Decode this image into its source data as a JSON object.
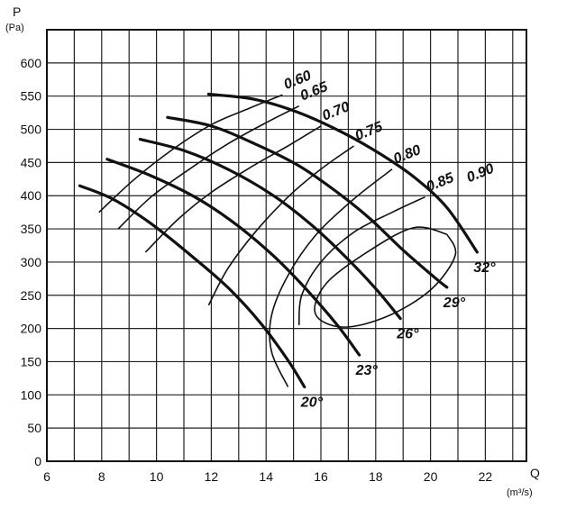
{
  "chart_data": {
    "type": "line",
    "title": "",
    "xlabel": "Q",
    "xlabel_unit": "(m³/s)",
    "ylabel": "P",
    "ylabel_unit": "(Pa)",
    "xlim": [
      6,
      23.5
    ],
    "ylim": [
      0,
      650
    ],
    "x_ticks": [
      "6",
      "8",
      "10",
      "12",
      "14",
      "16",
      "18",
      "20",
      "22"
    ],
    "y_ticks": [
      "0",
      "50",
      "100",
      "150",
      "200",
      "250",
      "300",
      "350",
      "400",
      "450",
      "500",
      "550",
      "600"
    ],
    "grid": true,
    "series": [
      {
        "name": "20°",
        "points": [
          [
            7.2,
            415
          ],
          [
            8.4,
            395
          ],
          [
            9.8,
            358
          ],
          [
            11.2,
            312
          ],
          [
            12.6,
            262
          ],
          [
            13.8,
            208
          ],
          [
            14.8,
            152
          ],
          [
            15.4,
            112
          ]
        ]
      },
      {
        "name": "23°",
        "points": [
          [
            8.2,
            455
          ],
          [
            9.8,
            430
          ],
          [
            11.4,
            398
          ],
          [
            12.8,
            360
          ],
          [
            14.2,
            312
          ],
          [
            15.4,
            262
          ],
          [
            16.6,
            205
          ],
          [
            17.4,
            160
          ]
        ]
      },
      {
        "name": "26°",
        "points": [
          [
            9.4,
            485
          ],
          [
            11.0,
            468
          ],
          [
            12.6,
            440
          ],
          [
            14.2,
            402
          ],
          [
            15.6,
            358
          ],
          [
            16.8,
            312
          ],
          [
            18.0,
            260
          ],
          [
            18.9,
            215
          ]
        ]
      },
      {
        "name": "29°",
        "points": [
          [
            10.4,
            518
          ],
          [
            12.0,
            505
          ],
          [
            13.6,
            478
          ],
          [
            15.2,
            445
          ],
          [
            16.6,
            405
          ],
          [
            17.8,
            365
          ],
          [
            19.0,
            318
          ],
          [
            20.2,
            275
          ],
          [
            20.6,
            262
          ]
        ]
      },
      {
        "name": "32°",
        "points": [
          [
            11.9,
            553
          ],
          [
            13.6,
            545
          ],
          [
            15.2,
            525
          ],
          [
            16.8,
            495
          ],
          [
            18.2,
            462
          ],
          [
            19.4,
            428
          ],
          [
            20.6,
            382
          ],
          [
            21.7,
            315
          ]
        ]
      }
    ],
    "efficiency_curves": [
      {
        "name": "0.60",
        "points": [
          [
            7.9,
            375
          ],
          [
            9.2,
            425
          ],
          [
            10.6,
            470
          ],
          [
            12.0,
            507
          ],
          [
            13.4,
            532
          ],
          [
            14.6,
            552
          ]
        ]
      },
      {
        "name": "0.65",
        "points": [
          [
            8.6,
            350
          ],
          [
            9.8,
            398
          ],
          [
            11.2,
            440
          ],
          [
            12.6,
            478
          ],
          [
            14.0,
            510
          ],
          [
            15.2,
            535
          ]
        ]
      },
      {
        "name": "0.70",
        "points": [
          [
            9.6,
            315
          ],
          [
            10.8,
            365
          ],
          [
            12.0,
            405
          ],
          [
            13.4,
            442
          ],
          [
            14.8,
            475
          ],
          [
            16.0,
            505
          ]
        ]
      },
      {
        "name": "0.75",
        "points": [
          [
            11.9,
            235
          ],
          [
            12.6,
            290
          ],
          [
            13.6,
            345
          ],
          [
            14.8,
            398
          ],
          [
            16.0,
            440
          ],
          [
            17.2,
            475
          ]
        ]
      },
      {
        "name": "0.80",
        "points": [
          [
            14.8,
            112
          ],
          [
            14.2,
            165
          ],
          [
            14.2,
            220
          ],
          [
            14.8,
            280
          ],
          [
            15.8,
            340
          ],
          [
            17.2,
            395
          ],
          [
            18.6,
            440
          ]
        ]
      },
      {
        "name": "0.85",
        "points": [
          [
            15.2,
            205
          ],
          [
            15.3,
            250
          ],
          [
            16.0,
            300
          ],
          [
            17.2,
            345
          ],
          [
            18.6,
            375
          ],
          [
            19.8,
            398
          ]
        ]
      },
      {
        "name": "0.90",
        "shape": "loop",
        "points": [
          [
            20.6,
            342
          ],
          [
            20.9,
            310
          ],
          [
            20.0,
            258
          ],
          [
            18.4,
            218
          ],
          [
            16.8,
            202
          ],
          [
            15.8,
            222
          ],
          [
            16.2,
            268
          ],
          [
            17.8,
            318
          ],
          [
            19.4,
            352
          ],
          [
            20.6,
            342
          ]
        ]
      }
    ]
  }
}
